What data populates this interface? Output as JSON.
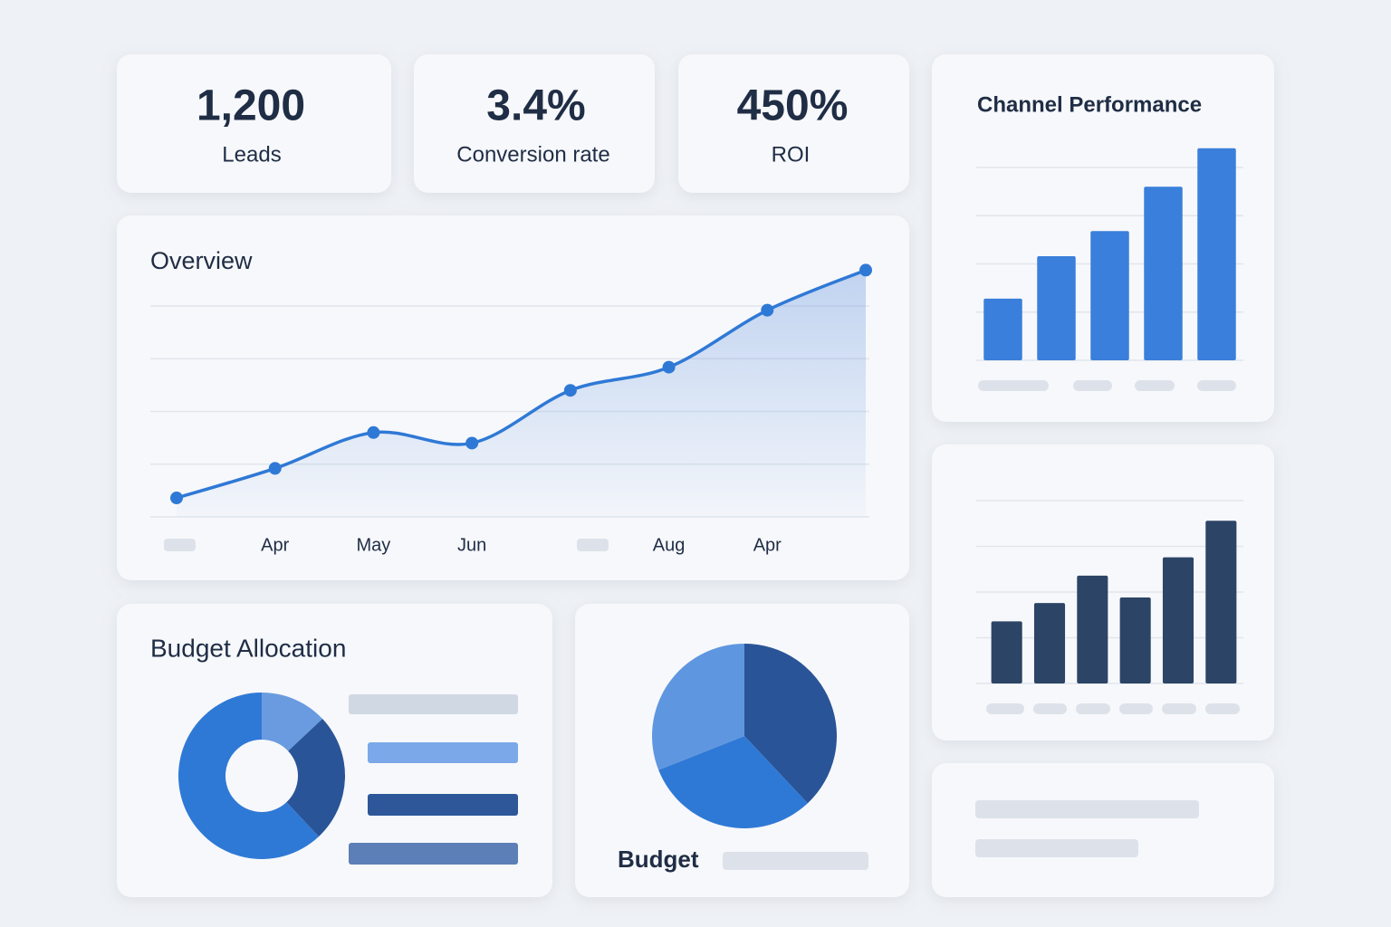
{
  "kpis": [
    {
      "value": "1,200",
      "label": "Leads"
    },
    {
      "value": "3.4%",
      "label": "Conversion rate"
    },
    {
      "value": "450%",
      "label": "ROI"
    }
  ],
  "chart_data": [
    {
      "type": "line",
      "title": "Overview",
      "categories": [
        null,
        "Apr",
        "May",
        "Jun",
        null,
        "Aug",
        "Apr",
        null
      ],
      "values": [
        9,
        23,
        40,
        35,
        60,
        71,
        98,
        117
      ],
      "color": "#2f79d6",
      "area": true,
      "ylim": [
        0,
        120
      ],
      "yticks": [
        0,
        25,
        50,
        75,
        100
      ],
      "grid": true
    },
    {
      "type": "bar",
      "title": "Channel Performance",
      "categories": [
        null,
        null,
        null,
        null,
        null
      ],
      "values": [
        32,
        54,
        67,
        90,
        110
      ],
      "color": "#3a7fdb",
      "ylim": [
        0,
        120
      ],
      "yticks": [
        0,
        25,
        50,
        75,
        100
      ],
      "grid": true
    },
    {
      "type": "bar",
      "categories": [
        null,
        null,
        null,
        null,
        null,
        null
      ],
      "values": [
        34,
        44,
        59,
        47,
        69,
        89
      ],
      "color": "#2c4466",
      "ylim": [
        0,
        100
      ],
      "yticks": [
        0,
        25,
        50,
        75,
        100
      ],
      "grid": true
    },
    {
      "type": "donut",
      "title": "Budget Allocation",
      "values": [
        13,
        25,
        62
      ],
      "colors": [
        "#6a9be0",
        "#2a5498",
        "#2f79d6"
      ]
    },
    {
      "type": "pie",
      "title": "Budget",
      "values": [
        38,
        31,
        31
      ],
      "colors": [
        "#2a5498",
        "#2f79d6",
        "#5f96e0"
      ]
    }
  ]
}
